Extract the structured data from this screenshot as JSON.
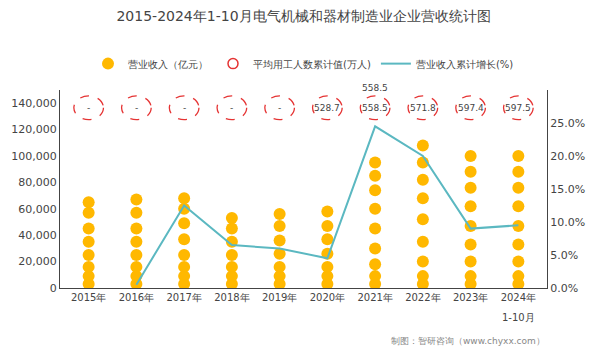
{
  "chart_data": {
    "type": "scatter",
    "title": "2015-2024年1-10月电气机械和器材制造业企业营收统计图",
    "categories": [
      "2015年",
      "2016年",
      "2017年",
      "2018年",
      "2019年",
      "2020年",
      "2021年",
      "2022年",
      "2023年",
      "2024年"
    ],
    "series": [
      {
        "name": "营业收入（亿元）",
        "type": "scatter",
        "marker": "circle",
        "color": "#FFB800",
        "values": [
          [
            3000,
            9000,
            16000,
            25000,
            35000,
            45000,
            57000,
            65000
          ],
          [
            3000,
            9000,
            16000,
            25000,
            35000,
            45000,
            57000,
            67000
          ],
          [
            3000,
            9000,
            16000,
            25000,
            37000,
            49000,
            60000,
            68000
          ],
          [
            3000,
            9000,
            16000,
            25000,
            35000,
            45000,
            53000
          ],
          [
            3000,
            9000,
            16000,
            26000,
            36000,
            47000,
            56000
          ],
          [
            3000,
            9000,
            16000,
            26000,
            37000,
            47000,
            58000
          ],
          [
            3000,
            9000,
            18000,
            30000,
            45000,
            60000,
            74000,
            85000,
            95000
          ],
          [
            3000,
            9000,
            20000,
            35000,
            52000,
            68000,
            82000,
            95000,
            108000
          ],
          [
            3000,
            9000,
            20000,
            33000,
            47000,
            62000,
            76000,
            88000,
            100000
          ],
          [
            3000,
            9000,
            20000,
            33000,
            47000,
            62000,
            76000,
            88000,
            100000
          ]
        ]
      },
      {
        "name": "平均用工人数累计值(万人)",
        "type": "text",
        "marker": "circle-open",
        "line_style": "dashed",
        "color": "#E53333",
        "data_labels": true,
        "values": [
          null,
          null,
          null,
          null,
          null,
          528.7,
          558.5,
          571.8,
          597.4,
          597.5
        ],
        "value_labels": [
          "-",
          "-",
          "-",
          "-",
          "-",
          "528.7",
          "558.5",
          "571.8",
          "597.4",
          "597.5"
        ]
      },
      {
        "name": "营业收入累计增长(%)",
        "type": "line",
        "axis": "y2",
        "color": "#5BB8C1",
        "values": [
          null,
          0.005,
          0.125,
          0.065,
          0.06,
          0.045,
          0.245,
          0.2,
          0.09,
          0.095
        ]
      }
    ],
    "ylim": [
      0,
      150000
    ],
    "yticks": [
      0,
      {
        "value": 20000,
        "label": "20,000"
      },
      {
        "value": 40000,
        "label": "40,000"
      },
      {
        "value": 60000,
        "label": "60,000"
      },
      {
        "value": 80000,
        "label": "80,000"
      },
      {
        "value": 100000,
        "label": "100,000"
      },
      {
        "value": 120000,
        "label": "120,000"
      },
      {
        "value": 140000,
        "label": "140,000"
      }
    ],
    "y2lim": [
      0,
      0.3
    ],
    "y2ticks": [
      {
        "value": 0.0,
        "label": "0.0%"
      },
      {
        "value": 0.05,
        "label": "5.0%"
      },
      {
        "value": 0.1,
        "label": "10.0%"
      },
      {
        "value": 0.15,
        "label": "15.0%"
      },
      {
        "value": 0.2,
        "label": "20.0%"
      },
      {
        "value": 0.25,
        "label": "25.0%"
      }
    ],
    "annotations": [
      {
        "text": "558.5",
        "x": "2021年",
        "position": "above"
      },
      {
        "text": "1-10月",
        "x": "2024年",
        "position": "below"
      }
    ],
    "source": "制图：智研咨询（www.chyxx.com）",
    "grid": false,
    "legend": "top"
  }
}
